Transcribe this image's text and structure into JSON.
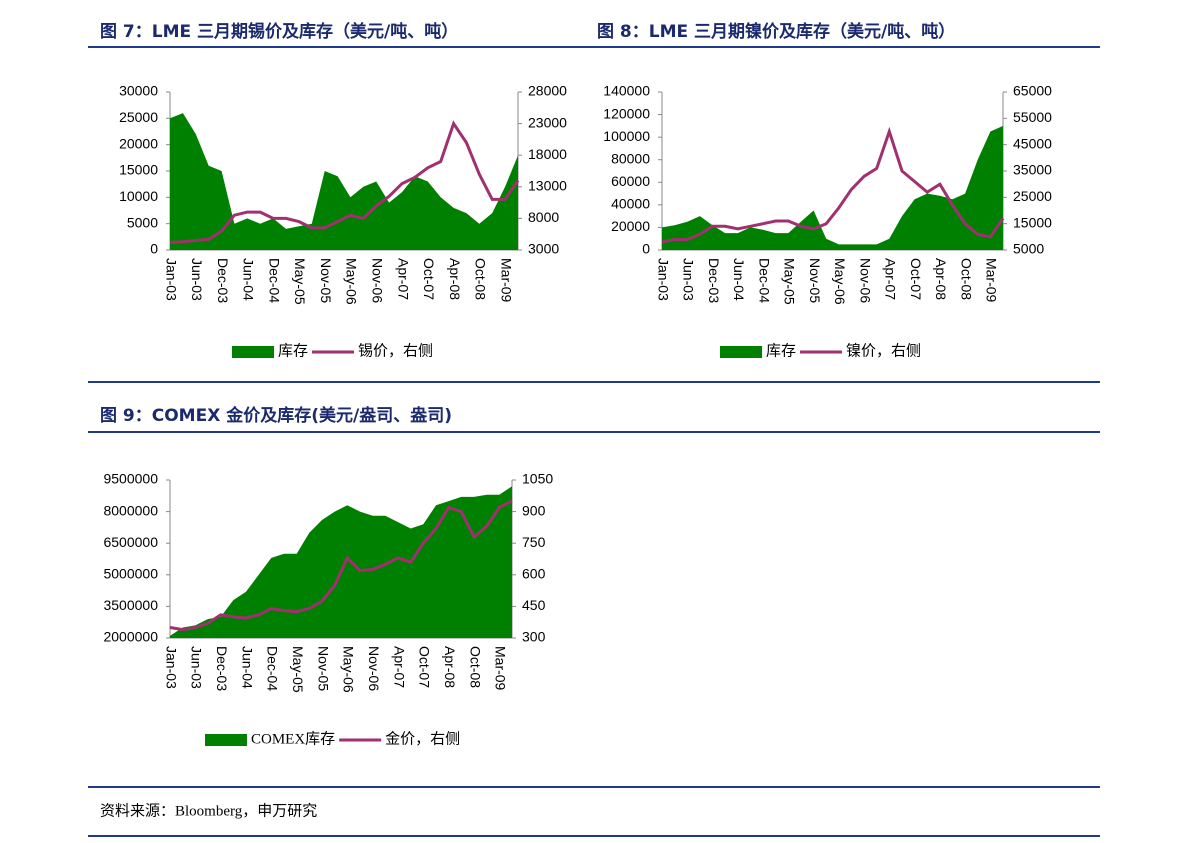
{
  "chart_data": [
    {
      "type": "combo",
      "title": "图 7：LME 三月期锡价及库存（美元/吨、吨）",
      "categories": [
        "Jan-03",
        null,
        "Jun-03",
        null,
        "Dec-03",
        null,
        "Jun-04",
        null,
        "Dec-04",
        null,
        "May-05",
        null,
        "Nov-05",
        null,
        "May-06",
        null,
        "Nov-06",
        null,
        "Apr-07",
        null,
        "Oct-07",
        null,
        "Apr-08",
        null,
        "Oct-08",
        null,
        "Mar-09",
        null
      ],
      "series": [
        {
          "name": "库存",
          "type": "area",
          "color": "#008000",
          "values": [
            25000,
            26000,
            22000,
            16000,
            15000,
            5000,
            6000,
            5000,
            6000,
            4000,
            4500,
            5000,
            15000,
            14000,
            10000,
            12000,
            13000,
            9000,
            11000,
            14000,
            13000,
            10000,
            8000,
            7000,
            5000,
            7000,
            12000,
            18000
          ]
        },
        {
          "name": "锡价，右侧",
          "type": "line",
          "axis": "y2",
          "color": "#a03070",
          "values": [
            4200,
            4300,
            4500,
            4700,
            6000,
            8500,
            9000,
            9000,
            8000,
            8000,
            7500,
            6500,
            6500,
            7500,
            8500,
            8000,
            10000,
            11500,
            13500,
            14500,
            16000,
            17000,
            23000,
            20000,
            15000,
            11000,
            11000,
            14000
          ]
        }
      ],
      "ylim": [
        0,
        30000
      ],
      "yticks": [
        0,
        5000,
        10000,
        15000,
        20000,
        25000,
        30000
      ],
      "y2lim": [
        3000,
        28000
      ],
      "y2ticks": [
        3000,
        8000,
        13000,
        18000,
        23000,
        28000
      ]
    },
    {
      "type": "combo",
      "title": "图 8：LME 三月期镍价及库存（美元/吨、吨）",
      "categories": [
        "Jan-03",
        null,
        "Jun-03",
        null,
        "Dec-03",
        null,
        "Jun-04",
        null,
        "Dec-04",
        null,
        "May-05",
        null,
        "Nov-05",
        null,
        "May-06",
        null,
        "Nov-06",
        null,
        "Apr-07",
        null,
        "Oct-07",
        null,
        "Apr-08",
        null,
        "Oct-08",
        null,
        "Mar-09",
        null
      ],
      "series": [
        {
          "name": "库存",
          "type": "area",
          "color": "#008000",
          "values": [
            20000,
            22000,
            25000,
            30000,
            22000,
            15000,
            15000,
            20000,
            18000,
            15000,
            15000,
            25000,
            35000,
            10000,
            5000,
            5000,
            5000,
            5000,
            10000,
            30000,
            45000,
            50000,
            48000,
            45000,
            50000,
            80000,
            105000,
            110000
          ]
        },
        {
          "name": "镍价，右侧",
          "type": "line",
          "axis": "y2",
          "color": "#a03070",
          "values": [
            8000,
            9000,
            9000,
            11000,
            14000,
            14000,
            13000,
            14000,
            15000,
            16000,
            16000,
            14000,
            13000,
            15000,
            21000,
            28000,
            33000,
            36000,
            50000,
            35000,
            31000,
            27000,
            30000,
            22000,
            15000,
            11000,
            10000,
            17000
          ]
        }
      ],
      "ylim": [
        0,
        140000
      ],
      "yticks": [
        0,
        20000,
        40000,
        60000,
        80000,
        100000,
        120000,
        140000
      ],
      "y2lim": [
        5000,
        65000
      ],
      "y2ticks": [
        5000,
        15000,
        25000,
        35000,
        45000,
        55000,
        65000
      ]
    },
    {
      "type": "combo",
      "title": "图 9：COMEX 金价及库存(美元/盎司、盎司)",
      "categories": [
        "Jan-03",
        null,
        "Jun-03",
        null,
        "Dec-03",
        null,
        "Jun-04",
        null,
        "Dec-04",
        null,
        "May-05",
        null,
        "Nov-05",
        null,
        "May-06",
        null,
        "Nov-06",
        null,
        "Apr-07",
        null,
        "Oct-07",
        null,
        "Apr-08",
        null,
        "Oct-08",
        null,
        "Mar-09",
        null
      ],
      "series": [
        {
          "name": "COMEX库存",
          "type": "area",
          "color": "#008000",
          "values": [
            2100000,
            2500000,
            2600000,
            2900000,
            3000000,
            3800000,
            4200000,
            5000000,
            5800000,
            6000000,
            6000000,
            7000000,
            7600000,
            8000000,
            8300000,
            8000000,
            7800000,
            7800000,
            7500000,
            7200000,
            7400000,
            8300000,
            8500000,
            8700000,
            8700000,
            8800000,
            8800000,
            9200000
          ]
        },
        {
          "name": "金价，右侧",
          "type": "line",
          "axis": "y2",
          "color": "#a03070",
          "values": [
            350,
            340,
            350,
            370,
            410,
            400,
            395,
            410,
            440,
            430,
            425,
            440,
            475,
            550,
            680,
            620,
            625,
            650,
            680,
            660,
            750,
            820,
            920,
            900,
            780,
            830,
            920,
            950
          ]
        }
      ],
      "ylim": [
        2000000,
        9500000
      ],
      "yticks": [
        2000000,
        3500000,
        5000000,
        6500000,
        8000000,
        9500000
      ],
      "y2lim": [
        300,
        1050
      ],
      "y2ticks": [
        300,
        450,
        600,
        750,
        900,
        1050
      ]
    }
  ],
  "source": "资料来源：Bloomberg，申万研究"
}
